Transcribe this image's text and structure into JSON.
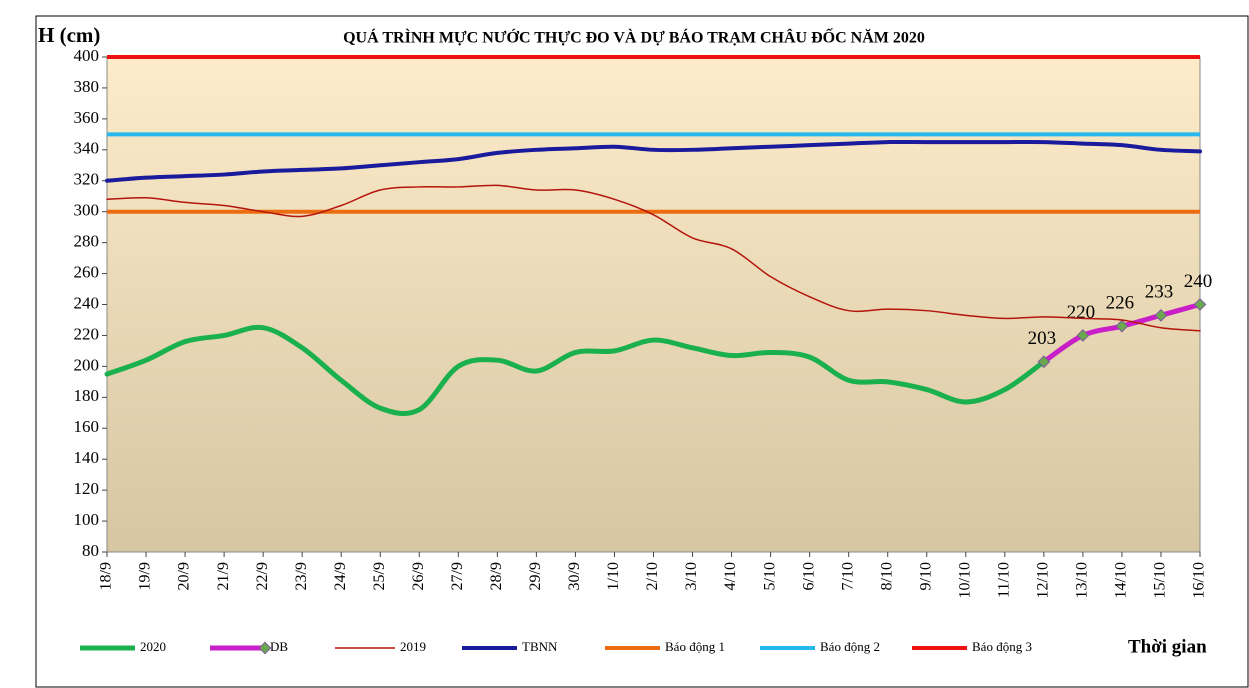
{
  "chart_data": {
    "type": "line",
    "title": "QUÁ TRÌNH MỰC NƯỚC THỰC ĐO VÀ DỰ BÁO TRẠM CHÂU ĐỐC NĂM 2020",
    "y_label": "H (cm)",
    "x_label": "Thời gian",
    "categories": [
      "18/9",
      "19/9",
      "20/9",
      "21/9",
      "22/9",
      "23/9",
      "24/9",
      "25/9",
      "26/9",
      "27/9",
      "28/9",
      "29/9",
      "30/9",
      "1/10",
      "2/10",
      "3/10",
      "4/10",
      "5/10",
      "6/10",
      "7/10",
      "8/10",
      "9/10",
      "10/10",
      "11/10",
      "12/10",
      "13/10",
      "14/10",
      "15/10",
      "16/10"
    ],
    "series": [
      {
        "name": "2020",
        "color": "#1bb04e",
        "width": 5,
        "values": [
          195,
          204,
          216,
          220,
          225,
          212,
          191,
          173,
          172,
          200,
          204,
          197,
          209,
          210,
          217,
          212,
          207,
          209,
          206,
          191,
          190,
          185,
          177,
          185,
          203,
          null,
          null,
          null,
          null
        ]
      },
      {
        "name": "DB",
        "color": "#c81fc8",
        "width": 5,
        "marker": true,
        "labels": true,
        "values": [
          null,
          null,
          null,
          null,
          null,
          null,
          null,
          null,
          null,
          null,
          null,
          null,
          null,
          null,
          null,
          null,
          null,
          null,
          null,
          null,
          null,
          null,
          null,
          null,
          203,
          220,
          226,
          233,
          240
        ]
      },
      {
        "name": "2019",
        "color": "#b3140c",
        "width": 1.5,
        "values": [
          308,
          309,
          306,
          304,
          300,
          297,
          304,
          314,
          316,
          316,
          317,
          314,
          314,
          308,
          298,
          283,
          276,
          258,
          245,
          236,
          237,
          236,
          233,
          231,
          232,
          231,
          230,
          225,
          223
        ]
      },
      {
        "name": "TBNN",
        "color": "#1a1a9c",
        "width": 4,
        "values": [
          320,
          322,
          323,
          324,
          326,
          327,
          328,
          330,
          332,
          334,
          338,
          340,
          341,
          342,
          340,
          340,
          341,
          342,
          343,
          344,
          345,
          345,
          345,
          345,
          345,
          344,
          343,
          340,
          339
        ]
      }
    ],
    "reference_lines": [
      {
        "name": "Báo động 1",
        "color": "#ec6c12",
        "value": 300
      },
      {
        "name": "Báo động 2",
        "color": "#26b8ec",
        "value": 350
      },
      {
        "name": "Báo động 3",
        "color": "#ee1111",
        "value": 400
      }
    ],
    "ylim": [
      80,
      400
    ],
    "yticks": [
      80,
      100,
      120,
      140,
      160,
      180,
      200,
      220,
      240,
      260,
      280,
      300,
      320,
      340,
      360,
      380,
      400
    ],
    "grid": false,
    "legend": "bottom"
  }
}
